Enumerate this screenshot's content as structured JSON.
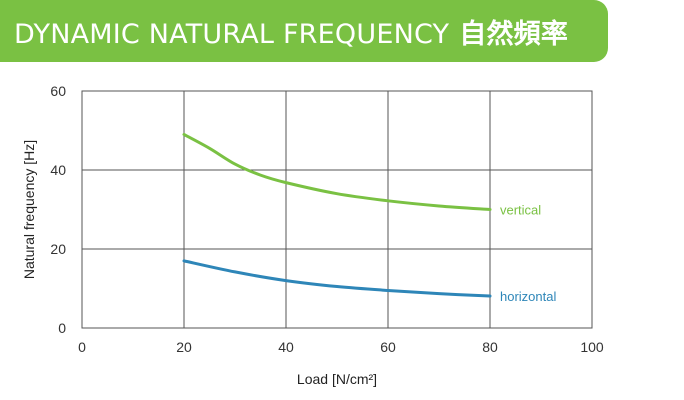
{
  "header": {
    "title": "DYNAMIC NATURAL FREQUENCY",
    "title_cjk": "自然頻率",
    "background": "#7ac143"
  },
  "chart_data": {
    "type": "line",
    "title": "DYNAMIC NATURAL FREQUENCY 自然頻率",
    "xlabel": "Load [N/cm²]",
    "ylabel": "Natural frequency [Hz]",
    "xlim": [
      0,
      100
    ],
    "ylim": [
      0,
      60
    ],
    "xticks": [
      0,
      20,
      40,
      60,
      80,
      100
    ],
    "yticks": [
      0,
      20,
      40,
      60
    ],
    "grid": true,
    "legend": "inline-right",
    "series": [
      {
        "name": "vertical",
        "color": "#7ac143",
        "x": [
          20,
          25,
          30,
          35,
          40,
          50,
          60,
          70,
          80
        ],
        "y": [
          49,
          45.5,
          41.5,
          38.7,
          36.8,
          34.0,
          32.2,
          30.9,
          30.0
        ]
      },
      {
        "name": "horizontal",
        "color": "#2e86b8",
        "x": [
          20,
          30,
          40,
          50,
          60,
          70,
          80
        ],
        "y": [
          17.0,
          14.2,
          12.0,
          10.5,
          9.5,
          8.7,
          8.1
        ]
      }
    ]
  }
}
